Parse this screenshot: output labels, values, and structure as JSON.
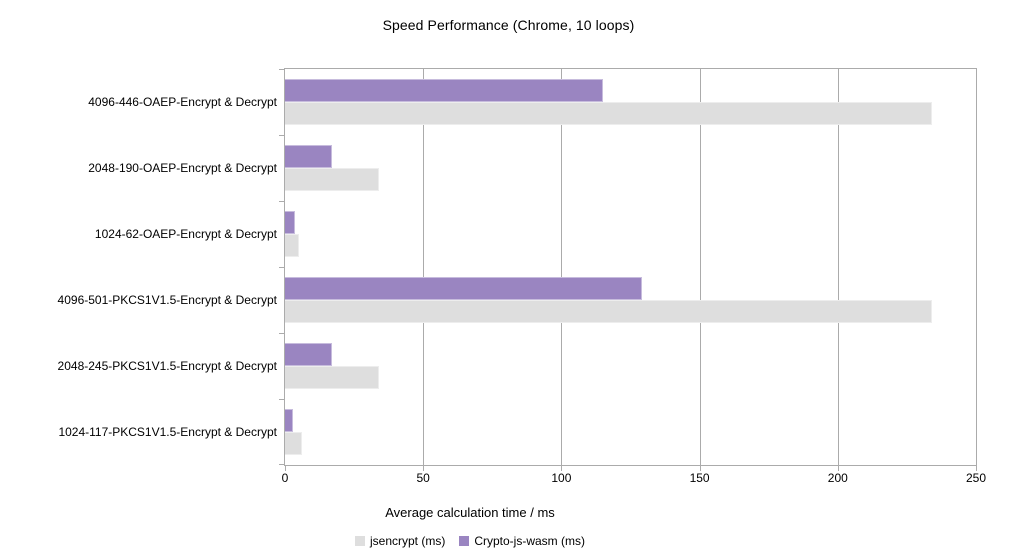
{
  "title": "Speed Performance (Chrome, 10 loops)",
  "chart_data": {
    "type": "bar",
    "orientation": "horizontal",
    "title": "Speed Performance (Chrome, 10 loops)",
    "xlabel": "Average calculation time / ms",
    "xlim": [
      0,
      250
    ],
    "xticks": [
      0,
      50,
      100,
      150,
      200,
      250
    ],
    "grid": "vertical-gridlines-on",
    "legend_position": "bottom-center",
    "categories": [
      "4096-446-OAEP-Encrypt & Decrypt",
      "2048-190-OAEP-Encrypt & Decrypt",
      "1024-62-OAEP-Encrypt & Decrypt",
      "4096-501-PKCS1V1.5-Encrypt & Decrypt",
      "2048-245-PKCS1V1.5-Encrypt & Decrypt",
      "1024-117-PKCS1V1.5-Encrypt & Decrypt"
    ],
    "series": [
      {
        "name": "jsencrypt (ms)",
        "color": "#dedede",
        "values": [
          234,
          34,
          5,
          234,
          34,
          6
        ]
      },
      {
        "name": "Crypto-js-wasm (ms)",
        "color": "#9a85c1",
        "values": [
          115,
          17,
          3.5,
          129,
          17,
          3
        ]
      }
    ]
  },
  "colors": {
    "background": "#ffffff",
    "axis_and_grid": "#ababab",
    "text": "#000000",
    "series_jsencrypt": "#dedede",
    "series_crypto_js_wasm": "#9a85c1"
  }
}
